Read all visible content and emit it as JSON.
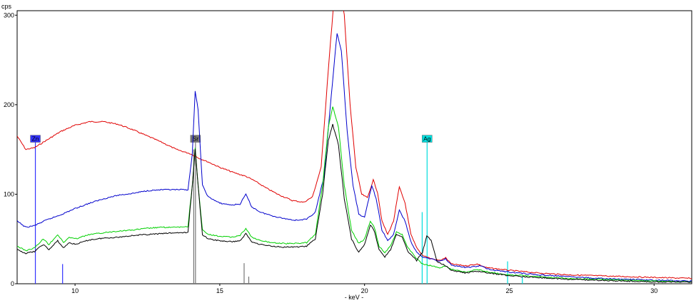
{
  "chart_data": {
    "type": "line",
    "ylabel": "cps",
    "xlabel": "- keV -",
    "xlim": [
      8.0,
      31.3
    ],
    "ylim": [
      0,
      305
    ],
    "x_ticks": [
      10,
      15,
      20,
      25,
      30
    ],
    "y_ticks": [
      0,
      100,
      200,
      300
    ],
    "colors": {
      "red": "#e00000",
      "blue": "#0000cc",
      "green": "#00d000",
      "black": "#000000",
      "zn_marker": "#3333ff",
      "sr_marker": "#777777",
      "ag_marker": "#00dddd"
    },
    "series": [
      {
        "color": "#e00000",
        "points": [
          [
            8.0,
            165
          ],
          [
            8.3,
            150
          ],
          [
            8.6,
            152
          ],
          [
            9.0,
            160
          ],
          [
            9.5,
            170
          ],
          [
            10.0,
            177
          ],
          [
            10.5,
            181
          ],
          [
            11.0,
            181
          ],
          [
            11.5,
            178
          ],
          [
            12.0,
            172
          ],
          [
            12.5,
            165
          ],
          [
            13.0,
            158
          ],
          [
            13.5,
            150
          ],
          [
            14.0,
            145
          ],
          [
            14.3,
            140
          ],
          [
            14.6,
            136
          ],
          [
            15.0,
            130
          ],
          [
            15.5,
            124
          ],
          [
            15.9,
            120
          ],
          [
            16.2,
            115
          ],
          [
            16.6,
            107
          ],
          [
            17.0,
            100
          ],
          [
            17.5,
            93
          ],
          [
            17.9,
            91
          ],
          [
            18.2,
            97
          ],
          [
            18.5,
            130
          ],
          [
            18.75,
            240
          ],
          [
            18.95,
            320
          ],
          [
            19.1,
            340
          ],
          [
            19.3,
            300
          ],
          [
            19.5,
            200
          ],
          [
            19.7,
            130
          ],
          [
            19.9,
            100
          ],
          [
            20.1,
            96
          ],
          [
            20.3,
            116
          ],
          [
            20.45,
            102
          ],
          [
            20.6,
            70
          ],
          [
            20.8,
            55
          ],
          [
            21.0,
            70
          ],
          [
            21.2,
            108
          ],
          [
            21.4,
            90
          ],
          [
            21.6,
            55
          ],
          [
            21.8,
            40
          ],
          [
            22.0,
            32
          ],
          [
            22.3,
            28
          ],
          [
            22.6,
            26
          ],
          [
            22.8,
            29
          ],
          [
            23.0,
            22
          ],
          [
            23.5,
            20
          ],
          [
            23.9,
            22
          ],
          [
            24.2,
            18
          ],
          [
            25.0,
            15
          ],
          [
            26.0,
            12
          ],
          [
            27.0,
            10
          ],
          [
            28.0,
            9
          ],
          [
            29.0,
            8
          ],
          [
            30.0,
            7
          ],
          [
            31.3,
            6
          ]
        ]
      },
      {
        "color": "#0000cc",
        "points": [
          [
            8.0,
            70
          ],
          [
            8.3,
            63
          ],
          [
            8.6,
            65
          ],
          [
            9.0,
            71
          ],
          [
            9.5,
            77
          ],
          [
            10.0,
            84
          ],
          [
            10.5,
            90
          ],
          [
            11.0,
            95
          ],
          [
            11.5,
            99
          ],
          [
            12.0,
            101
          ],
          [
            12.5,
            104
          ],
          [
            13.0,
            105
          ],
          [
            13.5,
            105
          ],
          [
            13.9,
            105
          ],
          [
            14.05,
            145
          ],
          [
            14.15,
            215
          ],
          [
            14.25,
            195
          ],
          [
            14.4,
            110
          ],
          [
            14.6,
            97
          ],
          [
            15.0,
            90
          ],
          [
            15.4,
            88
          ],
          [
            15.7,
            89
          ],
          [
            15.9,
            100
          ],
          [
            16.1,
            86
          ],
          [
            16.4,
            80
          ],
          [
            16.8,
            76
          ],
          [
            17.2,
            73
          ],
          [
            17.6,
            71
          ],
          [
            18.0,
            72
          ],
          [
            18.3,
            80
          ],
          [
            18.6,
            120
          ],
          [
            18.85,
            210
          ],
          [
            19.05,
            280
          ],
          [
            19.2,
            260
          ],
          [
            19.4,
            170
          ],
          [
            19.6,
            110
          ],
          [
            19.8,
            78
          ],
          [
            20.0,
            74
          ],
          [
            20.25,
            110
          ],
          [
            20.4,
            95
          ],
          [
            20.6,
            60
          ],
          [
            20.8,
            48
          ],
          [
            21.0,
            55
          ],
          [
            21.2,
            82
          ],
          [
            21.4,
            70
          ],
          [
            21.6,
            47
          ],
          [
            21.8,
            35
          ],
          [
            22.0,
            30
          ],
          [
            22.3,
            28
          ],
          [
            22.6,
            25
          ],
          [
            22.8,
            28
          ],
          [
            23.0,
            21
          ],
          [
            23.5,
            18
          ],
          [
            24.0,
            20
          ],
          [
            24.3,
            16
          ],
          [
            25.0,
            13
          ],
          [
            26.0,
            10
          ],
          [
            27.0,
            8
          ],
          [
            28.0,
            6
          ],
          [
            29.0,
            5
          ],
          [
            30.0,
            4
          ],
          [
            31.3,
            3
          ]
        ]
      },
      {
        "color": "#00d000",
        "points": [
          [
            8.0,
            42
          ],
          [
            8.3,
            37
          ],
          [
            8.6,
            40
          ],
          [
            8.9,
            50
          ],
          [
            9.1,
            44
          ],
          [
            9.4,
            55
          ],
          [
            9.6,
            46
          ],
          [
            9.8,
            52
          ],
          [
            10.0,
            50
          ],
          [
            10.5,
            55
          ],
          [
            11.0,
            57
          ],
          [
            11.5,
            59
          ],
          [
            12.0,
            60
          ],
          [
            12.5,
            62
          ],
          [
            13.0,
            63
          ],
          [
            13.5,
            63
          ],
          [
            13.9,
            64
          ],
          [
            14.05,
            110
          ],
          [
            14.15,
            152
          ],
          [
            14.25,
            110
          ],
          [
            14.4,
            60
          ],
          [
            14.6,
            55
          ],
          [
            15.0,
            53
          ],
          [
            15.4,
            52
          ],
          [
            15.7,
            54
          ],
          [
            15.9,
            62
          ],
          [
            16.1,
            52
          ],
          [
            16.4,
            48
          ],
          [
            16.8,
            46
          ],
          [
            17.2,
            45
          ],
          [
            17.6,
            45
          ],
          [
            18.0,
            46
          ],
          [
            18.3,
            55
          ],
          [
            18.55,
            110
          ],
          [
            18.75,
            175
          ],
          [
            18.9,
            198
          ],
          [
            19.1,
            175
          ],
          [
            19.3,
            110
          ],
          [
            19.55,
            60
          ],
          [
            19.8,
            45
          ],
          [
            20.0,
            50
          ],
          [
            20.2,
            70
          ],
          [
            20.35,
            62
          ],
          [
            20.5,
            42
          ],
          [
            20.7,
            35
          ],
          [
            20.9,
            42
          ],
          [
            21.1,
            58
          ],
          [
            21.3,
            55
          ],
          [
            21.5,
            40
          ],
          [
            21.8,
            28
          ],
          [
            22.0,
            22
          ],
          [
            22.3,
            20
          ],
          [
            22.6,
            18
          ],
          [
            22.8,
            20
          ],
          [
            23.0,
            16
          ],
          [
            23.5,
            13
          ],
          [
            23.9,
            16
          ],
          [
            24.3,
            13
          ],
          [
            25.0,
            10
          ],
          [
            26.0,
            8
          ],
          [
            27.0,
            6
          ],
          [
            28.0,
            5
          ],
          [
            29.0,
            4
          ],
          [
            30.0,
            3
          ],
          [
            31.3,
            2
          ]
        ]
      },
      {
        "color": "#000000",
        "points": [
          [
            8.0,
            38
          ],
          [
            8.3,
            34
          ],
          [
            8.6,
            36
          ],
          [
            8.9,
            44
          ],
          [
            9.1,
            38
          ],
          [
            9.4,
            48
          ],
          [
            9.6,
            40
          ],
          [
            9.8,
            46
          ],
          [
            10.0,
            44
          ],
          [
            10.5,
            49
          ],
          [
            11.0,
            51
          ],
          [
            11.5,
            52
          ],
          [
            12.0,
            54
          ],
          [
            12.5,
            55
          ],
          [
            13.0,
            56
          ],
          [
            13.5,
            57
          ],
          [
            13.9,
            57
          ],
          [
            14.05,
            110
          ],
          [
            14.15,
            150
          ],
          [
            14.25,
            110
          ],
          [
            14.4,
            55
          ],
          [
            14.6,
            50
          ],
          [
            15.0,
            48
          ],
          [
            15.4,
            47
          ],
          [
            15.7,
            48
          ],
          [
            15.9,
            56
          ],
          [
            16.1,
            47
          ],
          [
            16.4,
            44
          ],
          [
            16.8,
            42
          ],
          [
            17.2,
            41
          ],
          [
            17.6,
            41
          ],
          [
            18.0,
            42
          ],
          [
            18.3,
            50
          ],
          [
            18.55,
            100
          ],
          [
            18.75,
            160
          ],
          [
            18.9,
            178
          ],
          [
            19.1,
            155
          ],
          [
            19.3,
            95
          ],
          [
            19.55,
            50
          ],
          [
            19.8,
            35
          ],
          [
            20.0,
            44
          ],
          [
            20.2,
            66
          ],
          [
            20.35,
            58
          ],
          [
            20.5,
            38
          ],
          [
            20.7,
            30
          ],
          [
            20.9,
            38
          ],
          [
            21.1,
            55
          ],
          [
            21.3,
            52
          ],
          [
            21.5,
            36
          ],
          [
            21.8,
            26
          ],
          [
            22.0,
            35
          ],
          [
            22.15,
            54
          ],
          [
            22.3,
            48
          ],
          [
            22.5,
            25
          ],
          [
            22.8,
            20
          ],
          [
            23.0,
            15
          ],
          [
            23.5,
            12
          ],
          [
            23.9,
            14
          ],
          [
            24.3,
            12
          ],
          [
            25.0,
            9
          ],
          [
            26.0,
            7
          ],
          [
            27.0,
            5
          ],
          [
            28.0,
            4
          ],
          [
            29.0,
            3
          ],
          [
            30.0,
            2
          ],
          [
            31.3,
            2
          ]
        ]
      }
    ],
    "markers": [
      {
        "label": "Zn",
        "lines": [
          {
            "x": 8.63,
            "y": 158,
            "labeled": true
          },
          {
            "x": 9.57,
            "y": 22,
            "labeled": false
          }
        ],
        "color": "#3333ff"
      },
      {
        "label": "Sr",
        "lines": [
          {
            "x": 14.16,
            "y": 158,
            "labeled": true
          },
          {
            "x": 14.1,
            "y": 150,
            "labeled": false
          },
          {
            "x": 15.84,
            "y": 23,
            "labeled": false
          },
          {
            "x": 16.0,
            "y": 8,
            "labeled": false
          }
        ],
        "color": "#777777"
      },
      {
        "label": "Ag",
        "lines": [
          {
            "x": 22.16,
            "y": 158,
            "labeled": true
          },
          {
            "x": 21.99,
            "y": 80,
            "labeled": false
          },
          {
            "x": 24.94,
            "y": 25,
            "labeled": false
          },
          {
            "x": 25.45,
            "y": 8,
            "labeled": false
          }
        ],
        "color": "#00dddd"
      }
    ]
  }
}
